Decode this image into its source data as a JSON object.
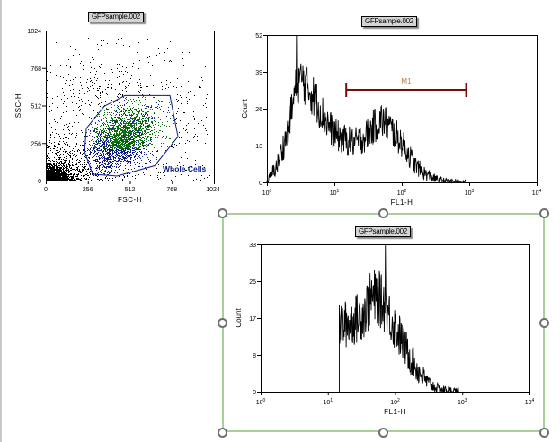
{
  "colors": {
    "axis": "#000000",
    "dots_outside": "#000000",
    "dots_gated_dense": "#0a6e0a",
    "dots_gated_low": "#0a1a8c",
    "gate": "#0a1a8c",
    "marker": "#7a0a0a",
    "marker_label": "#c07a3a",
    "selection": "#a9cf9a",
    "handle": "#6f6f6f"
  },
  "chart_data": [
    {
      "type": "scatter",
      "title": "GFPsample.002",
      "xlabel": "FSC-H",
      "ylabel": "SSC-H",
      "xlim": [
        0,
        1024
      ],
      "ylim": [
        0,
        1024
      ],
      "xticks": [
        "0",
        "256",
        "512",
        "768",
        "1024"
      ],
      "yticks": [
        "0",
        "256",
        "512",
        "768",
        "1024"
      ],
      "gate": {
        "name": "Whole Cells",
        "vertices": [
          [
            247,
            356
          ],
          [
            356,
            507
          ],
          [
            482,
            580
          ],
          [
            756,
            580
          ],
          [
            805,
            300
          ],
          [
            663,
            101
          ],
          [
            433,
            31
          ],
          [
            285,
            43
          ],
          [
            236,
            199
          ]
        ]
      },
      "population": {
        "gated_center": [
          460,
          290
        ],
        "gated_spread": [
          95,
          95
        ],
        "debris_center": [
          40,
          30
        ],
        "background_spread": "sparse scattered events across whole plot"
      }
    },
    {
      "type": "area",
      "title": "GFPsample.002",
      "xlabel": "FL1-H",
      "ylabel": "Count",
      "xscale": "log",
      "xlim": [
        1,
        10000
      ],
      "ylim": [
        0,
        52
      ],
      "xticks": [
        "10^0",
        "10^1",
        "10^2",
        "10^3",
        "10^4"
      ],
      "yticks": [
        "0",
        "13",
        "26",
        "39",
        "52"
      ],
      "envelope": {
        "log10_x": [
          0.0,
          0.15,
          0.3,
          0.45,
          0.55,
          0.7,
          0.85,
          1.0,
          1.15,
          1.3,
          1.45,
          1.6,
          1.7,
          1.8,
          1.9,
          2.0,
          2.1,
          2.2,
          2.35,
          2.5,
          2.65,
          2.8,
          2.95
        ],
        "count": [
          0,
          6,
          17,
          36,
          36,
          30,
          23,
          17,
          15,
          14,
          16,
          20,
          22,
          20,
          17,
          14,
          10,
          6,
          3,
          1.2,
          0.5,
          0.2,
          0
        ]
      },
      "peak_max": 52,
      "marker": {
        "name": "M1",
        "x_from": 15,
        "x_to": 900
      }
    },
    {
      "type": "area",
      "title": "GFPsample.002",
      "xlabel": "FL1-H",
      "ylabel": "Count",
      "xscale": "log",
      "xlim": [
        1,
        10000
      ],
      "ylim": [
        0,
        33
      ],
      "xticks": [
        "10^0",
        "10^1",
        "10^2",
        "10^3",
        "10^4"
      ],
      "yticks": [
        "0",
        "8",
        "17",
        "25",
        "33"
      ],
      "envelope": {
        "log10_x": [
          1.17,
          1.25,
          1.4,
          1.55,
          1.65,
          1.75,
          1.85,
          1.95,
          2.05,
          2.15,
          2.25,
          2.35,
          2.5,
          2.65,
          2.8,
          2.95
        ],
        "count": [
          15,
          15,
          16,
          18,
          21,
          21,
          19,
          16,
          13,
          10,
          7,
          4.5,
          1.8,
          0.6,
          0.2,
          0
        ]
      },
      "peak_max": 33
    }
  ],
  "labels": {
    "dot_title": "GFPsample.002",
    "hist1_title": "GFPsample.002",
    "hist2_title": "GFPsample.002",
    "gate_label": "Whole Cells",
    "marker_label": "M1",
    "fsc": "FSC-H",
    "ssc": "SSC-H",
    "fl1_a": "FL1-H",
    "fl1_b": "FL1-H",
    "count_a": "Count",
    "count_b": "Count"
  }
}
